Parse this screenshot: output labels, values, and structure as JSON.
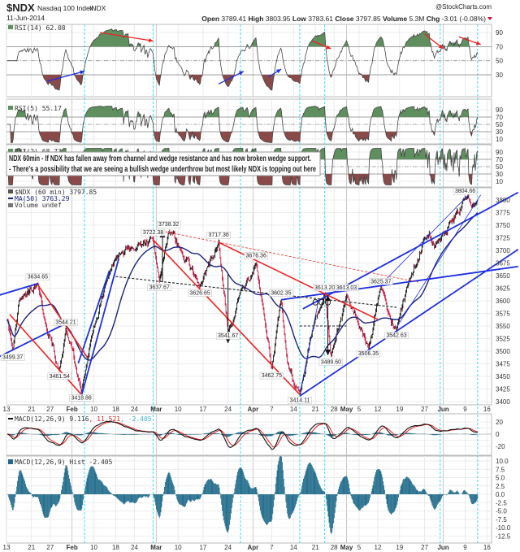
{
  "header": {
    "symbol": "$NDX",
    "name": "Nasdaq 100 Index",
    "exchange": "INDX",
    "date": "11-Jun-2014",
    "watermark": "@StockCharts.com",
    "quote": {
      "open_label": "Open",
      "open": "3789.41",
      "high_label": "High",
      "high": "3803.95",
      "low_label": "Low",
      "low": "3783.61",
      "close_label": "Close",
      "close": "3797.85",
      "volume_label": "Volume",
      "volume": "5.3M",
      "chg_label": "Chg",
      "chg": "-3.01 (-0.08%)",
      "chg_direction": "down"
    }
  },
  "note": {
    "line1": "NDX 60min - If NDX has fallen away from channel and wedge resistance and has now broken wedge support.",
    "line2": "- There's a possibility that we are seeing a bullish wedge underthrow but most likely NDX is topping out here"
  },
  "colors": {
    "up_bar": "#111111",
    "down_bar": "#c8143c",
    "ma": "#1a237e",
    "trend_blue": "#1f2fe0",
    "trend_red": "#ee2222",
    "rsi_overbought_fill": "#5f8f5f",
    "rsi_oversold_fill": "#8a4a4a",
    "macd_line": "#111111",
    "signal_line": "#e02020",
    "hist": "#1f6a8a",
    "vline": "#33e0f0"
  },
  "chart_data": {
    "type": "candlestick",
    "x_ticks": [
      {
        "date": "01-13",
        "label": "13",
        "month": false
      },
      {
        "date": "01-21",
        "label": "21",
        "month": false
      },
      {
        "date": "01-27",
        "label": "27",
        "month": false
      },
      {
        "date": "02-03",
        "label": "Feb",
        "month": true
      },
      {
        "date": "02-10",
        "label": "10",
        "month": false
      },
      {
        "date": "02-17",
        "label": "18",
        "month": false
      },
      {
        "date": "02-23",
        "label": "24",
        "month": false
      },
      {
        "date": "03-02",
        "label": "Mar",
        "month": true
      },
      {
        "date": "03-09",
        "label": "10",
        "month": false
      },
      {
        "date": "03-17",
        "label": "17",
        "month": false
      },
      {
        "date": "03-25",
        "label": "24",
        "month": false
      },
      {
        "date": "04-02",
        "label": "Apr",
        "month": true
      },
      {
        "date": "04-08",
        "label": "7",
        "month": false
      },
      {
        "date": "04-15",
        "label": "14",
        "month": false
      },
      {
        "date": "04-22",
        "label": "21",
        "month": false
      },
      {
        "date": "04-28",
        "label": "28",
        "month": false
      },
      {
        "date": "05-02",
        "label": "May",
        "month": true
      },
      {
        "date": "05-06",
        "label": "5",
        "month": false
      },
      {
        "date": "05-12",
        "label": "12",
        "month": false
      },
      {
        "date": "05-19",
        "label": "19",
        "month": false
      },
      {
        "date": "05-27",
        "label": "27",
        "month": false
      },
      {
        "date": "06-02",
        "label": "Jun",
        "month": true
      },
      {
        "date": "06-09",
        "label": "9",
        "month": false
      },
      {
        "date": "06-16",
        "label": "16",
        "month": false
      }
    ],
    "vlines": [
      "02-07",
      "03-01",
      "03-29",
      "04-17",
      "04-25",
      "06-01",
      "06-13"
    ],
    "rsi14": {
      "legend": "RSI(14) 62.08",
      "y_ticks": [
        "90",
        "70",
        "50",
        "30"
      ],
      "annotations": [
        {
          "color": "red",
          "from": [
            "02-12",
            90
          ],
          "to": [
            "03-01",
            78
          ]
        },
        {
          "color": "blue",
          "from": [
            "01-26",
            21
          ],
          "to": [
            "02-07",
            35
          ]
        },
        {
          "color": "blue",
          "from": [
            "03-22",
            17
          ],
          "to": [
            "03-30",
            35
          ]
        },
        {
          "color": "blue",
          "from": [
            "04-07",
            27
          ],
          "to": [
            "04-11",
            38
          ]
        },
        {
          "color": "red",
          "from": [
            "04-21",
            78
          ],
          "to": [
            "04-27",
            67
          ]
        },
        {
          "color": "red",
          "from": [
            "05-27",
            88
          ],
          "to": [
            "06-02",
            67
          ]
        },
        {
          "color": "red",
          "from": [
            "06-07",
            84
          ],
          "to": [
            "06-14",
            73
          ]
        }
      ]
    },
    "rsi5": {
      "legend": "RSI(5) 55.17",
      "y_ticks": [
        "90",
        "70",
        "50",
        "30",
        "10"
      ]
    },
    "rsi2": {
      "legend": "RSI(2) 68.73",
      "y_ticks": [
        "90",
        "70",
        "50",
        "30",
        "10"
      ]
    },
    "price": {
      "legend_symbol": "$NDX (60 min) 3797.85",
      "legend_ma": "MA(50) 3763.29",
      "legend_volume": "Volume undef",
      "y_ticks": [
        "3800",
        "3775",
        "3750",
        "3725",
        "3700",
        "3675",
        "3650",
        "3625",
        "3600",
        "3575",
        "3550",
        "3525",
        "3500",
        "3475",
        "3450",
        "3425",
        "3400"
      ],
      "ylim": [
        3400,
        3800
      ],
      "pivots": [
        {
          "date": "01-13",
          "price": 3570
        },
        {
          "date": "01-15",
          "price": 3499.37,
          "label": "3499.37",
          "kind": "low"
        },
        {
          "date": "01-17",
          "price": 3600
        },
        {
          "date": "01-23",
          "price": 3634.65,
          "label": "3634.65",
          "kind": "high"
        },
        {
          "date": "01-25",
          "price": 3565
        },
        {
          "date": "01-30",
          "price": 3461.54,
          "label": "3461.54",
          "kind": "low"
        },
        {
          "date": "02-01",
          "price": 3544.21,
          "label": "3544.21",
          "kind": "high"
        },
        {
          "date": "02-06",
          "price": 3418.88,
          "label": "3418.88",
          "kind": "low"
        },
        {
          "date": "02-09",
          "price": 3520
        },
        {
          "date": "02-14",
          "price": 3640
        },
        {
          "date": "02-18",
          "price": 3690
        },
        {
          "date": "02-23",
          "price": 3700
        },
        {
          "date": "03-01",
          "price": 3722.38,
          "label": "3722.38",
          "kind": "high"
        },
        {
          "date": "03-03",
          "price": 3637.67,
          "label": "3637.67",
          "kind": "low"
        },
        {
          "date": "03-06",
          "price": 3738.32,
          "label": "3738.32",
          "kind": "high"
        },
        {
          "date": "03-10",
          "price": 3700
        },
        {
          "date": "03-16",
          "price": 3626.65,
          "label": "3626.65",
          "kind": "low"
        },
        {
          "date": "03-22",
          "price": 3717.36,
          "label": "3717.36",
          "kind": "high"
        },
        {
          "date": "03-25",
          "price": 3541.67,
          "label": "3541.67",
          "kind": "low"
        },
        {
          "date": "03-27",
          "price": 3565
        },
        {
          "date": "03-29",
          "price": 3620
        },
        {
          "date": "04-03",
          "price": 3676.36,
          "label": "3676.36",
          "kind": "high"
        },
        {
          "date": "04-08",
          "price": 3462.75,
          "label": "3462.75",
          "kind": "low"
        },
        {
          "date": "04-11",
          "price": 3602.35,
          "label": "3602.35",
          "kind": "high"
        },
        {
          "date": "04-13",
          "price": 3480
        },
        {
          "date": "04-17",
          "price": 3414.11,
          "label": "3414.11",
          "kind": "low"
        },
        {
          "date": "04-21",
          "price": 3540
        },
        {
          "date": "04-25",
          "price": 3613.2,
          "label": "3613.20",
          "kind": "high"
        },
        {
          "date": "04-27",
          "price": 3489.6,
          "label": "3489.60",
          "kind": "low"
        },
        {
          "date": "05-02",
          "price": 3613.03,
          "label": "3613.03",
          "kind": "high"
        },
        {
          "date": "05-09",
          "price": 3506.35,
          "label": "3506.35",
          "kind": "low"
        },
        {
          "date": "05-13",
          "price": 3625.37,
          "label": "3625.37",
          "kind": "high"
        },
        {
          "date": "05-18",
          "price": 3542.63,
          "label": "3542.63",
          "kind": "low"
        },
        {
          "date": "05-22",
          "price": 3640
        },
        {
          "date": "05-27",
          "price": 3725
        },
        {
          "date": "06-01",
          "price": 3720
        },
        {
          "date": "06-09",
          "price": 3804.66,
          "label": "3804.66",
          "kind": "high"
        },
        {
          "date": "06-11",
          "price": 3785
        },
        {
          "date": "06-13",
          "price": 3797.85
        }
      ],
      "trendlines": [
        {
          "style": "blue",
          "from": [
            "01-10",
            3610
          ],
          "to": [
            "01-23",
            3634
          ]
        },
        {
          "style": "blue",
          "from": [
            "01-10",
            3487
          ],
          "to": [
            "02-01",
            3555
          ]
        },
        {
          "style": "blue",
          "from": [
            "02-06",
            3411
          ],
          "to": [
            "02-18",
            3684
          ]
        },
        {
          "style": "blue",
          "from": [
            "02-05",
            3476
          ],
          "to": [
            "02-15",
            3660
          ]
        },
        {
          "style": "blue",
          "from": [
            "04-18",
            3584
          ],
          "to": [
            "06-26",
            3815
          ]
        },
        {
          "style": "blue",
          "from": [
            "04-17",
            3411
          ],
          "to": [
            "06-26",
            3702
          ]
        },
        {
          "style": "blue",
          "from": [
            "04-11",
            3602
          ],
          "to": [
            "06-26",
            3668
          ]
        },
        {
          "style": "thin-blue",
          "from": [
            "04-17",
            3414
          ],
          "to": [
            "04-23",
            3600
          ]
        },
        {
          "style": "thin-blue",
          "from": [
            "05-18",
            3547
          ],
          "to": [
            "06-14",
            3810
          ]
        },
        {
          "style": "thin-blue",
          "from": [
            "05-13",
            3632
          ],
          "to": [
            "06-10",
            3810
          ]
        },
        {
          "style": "red",
          "from": [
            "01-14",
            3573
          ],
          "to": [
            "02-06",
            3414
          ]
        },
        {
          "style": "red",
          "from": [
            "01-23",
            3632
          ],
          "to": [
            "02-08",
            3487
          ]
        },
        {
          "style": "red",
          "from": [
            "03-01",
            3721
          ],
          "to": [
            "04-17",
            3414
          ]
        },
        {
          "style": "red",
          "from": [
            "03-22",
            3716
          ],
          "to": [
            "05-12",
            3563
          ]
        },
        {
          "style": "red-dashed",
          "from": [
            "03-05",
            3737
          ],
          "to": [
            "05-25",
            3637
          ]
        },
        {
          "style": "black-dashed",
          "from": [
            "02-17",
            3648
          ],
          "to": [
            "05-18",
            3587
          ]
        },
        {
          "style": "black-dashed",
          "from": [
            "04-17",
            3550
          ],
          "to": [
            "05-02",
            3550
          ]
        }
      ],
      "arrows": [
        {
          "date": "03-25",
          "from": 3653,
          "to": 3516
        },
        {
          "date": "03-04",
          "from": 3637,
          "to": 3737
        },
        {
          "date": "04-26",
          "from": 3552,
          "to": 3611
        },
        {
          "date": "04-26",
          "from": 3552,
          "to": 3492
        }
      ],
      "circles": [
        {
          "date": "04-22",
          "price": 3597
        },
        {
          "date": "04-24",
          "price": 3597
        },
        {
          "date": "04-26",
          "price": 3597
        }
      ]
    },
    "macd": {
      "legend": "MACD(12,26,9) 9.116",
      "legend_signal": ", 11.521",
      "legend_hist": ", -2.405",
      "y_ticks": [
        "20",
        "0",
        "-20"
      ]
    },
    "macd_hist": {
      "legend": "MACD(12,26,9) Hist -2.405",
      "y_ticks": [
        "10.0",
        "7.5",
        "5.0",
        "2.5",
        "0.0",
        "-2.5",
        "-5.0",
        "-7.5",
        "-10.0",
        "-12.5"
      ]
    }
  }
}
